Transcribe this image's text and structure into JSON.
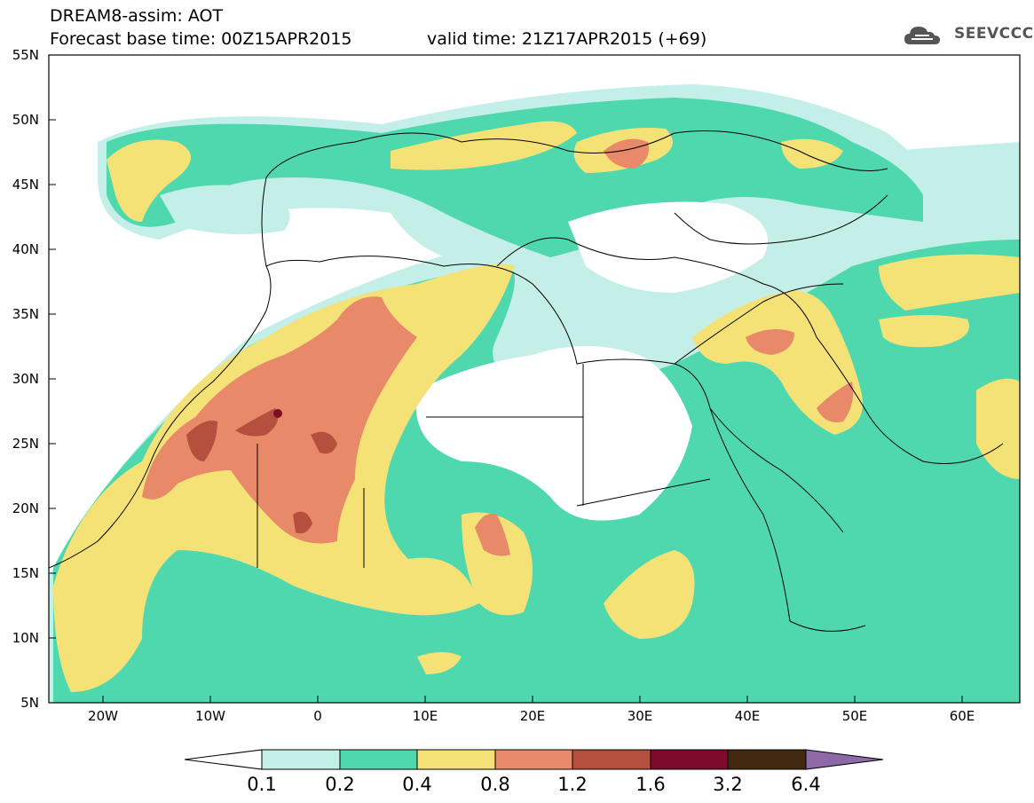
{
  "header": {
    "title": "DREAM8-assim: AOT",
    "base_time": "Forecast base time: 00Z15APR2015",
    "valid_time": "valid time: 21Z17APR2015 (+69)"
  },
  "logo": {
    "text": "SEEVCCC",
    "icon": "cloud-icon"
  },
  "map": {
    "lat_labels": [
      "55N",
      "50N",
      "45N",
      "40N",
      "35N",
      "30N",
      "25N",
      "20N",
      "15N",
      "10N",
      "5N"
    ],
    "lon_labels": [
      "20W",
      "10W",
      "0",
      "10E",
      "20E",
      "30E",
      "40E",
      "50E",
      "60E"
    ],
    "region": "North Africa, Europe and the Middle East",
    "variable": "AOT"
  },
  "colorbar": {
    "labels": [
      "0.1",
      "0.2",
      "0.4",
      "0.8",
      "1.2",
      "1.6",
      "3.2",
      "6.4"
    ],
    "colors": [
      "#ffffff",
      "#c4efe9",
      "#4fd8ae",
      "#f4e276",
      "#e8896a",
      "#b5503e",
      "#7f0a2c",
      "#43290f",
      "#8d69a8"
    ]
  }
}
